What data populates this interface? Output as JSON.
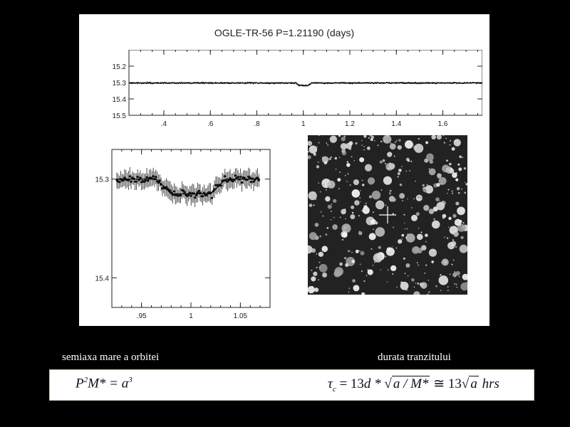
{
  "chart_data": [
    {
      "type": "scatter",
      "title": "OGLE-TR-56  P=1.21190 (days)",
      "xlabel": "",
      "ylabel": "",
      "xlim": [
        0.25,
        1.77
      ],
      "ylim": [
        15.5,
        15.1
      ],
      "y_inverted": true,
      "x_ticks": [
        ".4",
        ".6",
        ".8",
        "1",
        "1.2",
        "1.4",
        "1.6"
      ],
      "x_tick_values": [
        0.4,
        0.6,
        0.8,
        1.0,
        1.2,
        1.4,
        1.6
      ],
      "y_ticks": [
        "15.2",
        "15.3",
        "15.4",
        "15.5"
      ],
      "y_tick_values": [
        15.2,
        15.3,
        15.4,
        15.5
      ],
      "baseline_mag": 15.3,
      "transit_center_phase": 1.0,
      "transit_depth_mag": 0.015,
      "grid": false
    },
    {
      "type": "scatter",
      "xlabel": "",
      "ylabel": "",
      "xlim": [
        0.92,
        1.08
      ],
      "ylim": [
        15.43,
        15.27
      ],
      "y_inverted": true,
      "x_ticks": [
        ".95",
        "1",
        "1.05"
      ],
      "x_tick_values": [
        0.95,
        1.0,
        1.05
      ],
      "y_ticks": [
        "15.3",
        "15.4"
      ],
      "y_tick_values": [
        15.3,
        15.4
      ],
      "baseline_mag": 15.3,
      "transit_center_phase": 1.0,
      "transit_depth_mag": 0.015,
      "error_bars": true,
      "model_line": true,
      "grid": false
    }
  ],
  "colors": {
    "background": "#000000",
    "figure_bg": "#ffffff",
    "caption_text": "#ffffff",
    "formula_border": "#bbaa88",
    "marker": "#111111"
  },
  "image": {
    "type": "star field",
    "marker": "crosshair"
  },
  "captions": {
    "left": "semiaxa mare a orbitei",
    "right": "durata tranzitului"
  },
  "formulas": {
    "kepler": {
      "P": "P",
      "P_exp": "2",
      "M": "M* = a",
      "a_exp": "3"
    },
    "transit": {
      "tau": "τ",
      "tau_sub": "c",
      "eq": "= 13",
      "d": "d *",
      "sqrt_arg": "a / M*",
      "approx": "≅ 13",
      "sqrt_arg2": "a",
      "hrs": "hrs"
    }
  }
}
